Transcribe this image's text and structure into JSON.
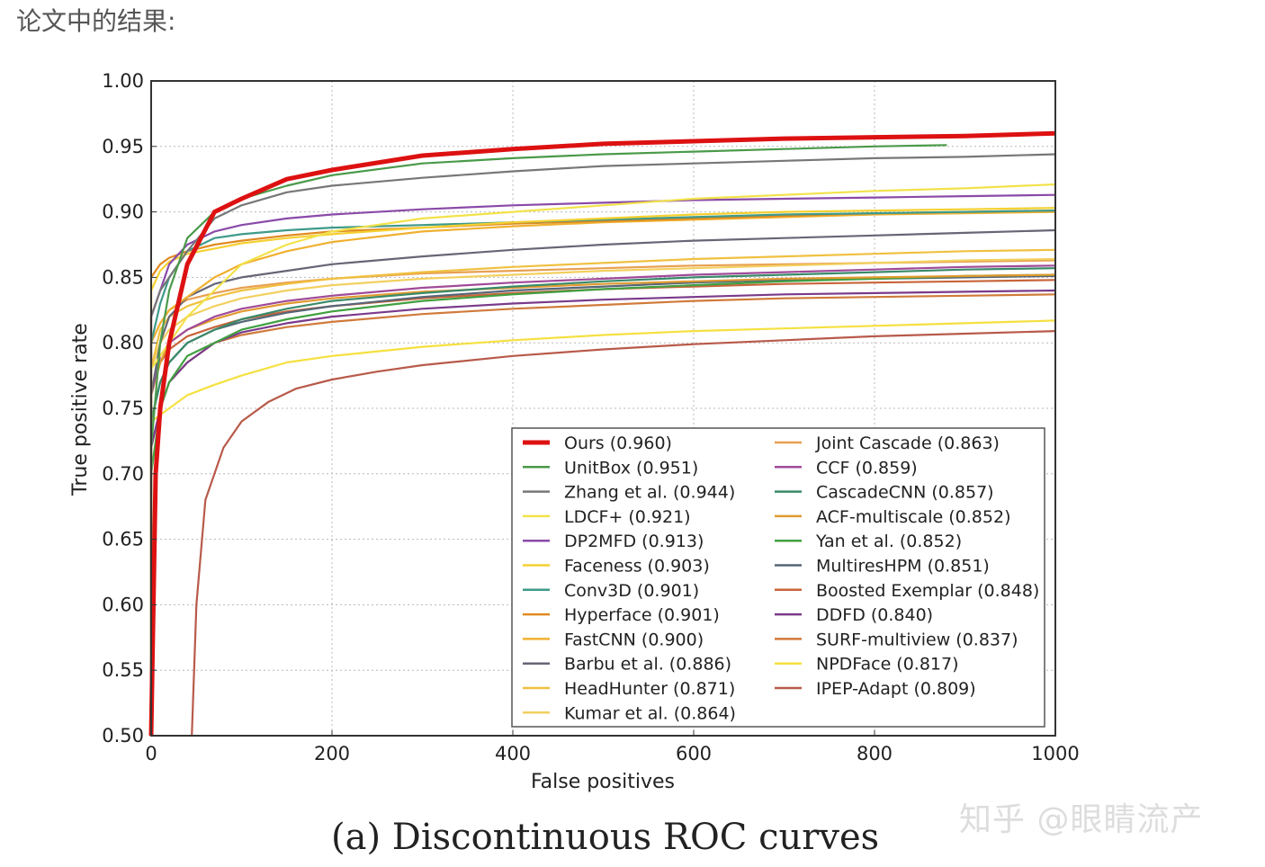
{
  "heading": "论文中的结果:",
  "watermark": "知乎 @眼睛流产",
  "caption": "(a)  Discontinuous ROC curves",
  "chart_data": {
    "type": "line",
    "title": "",
    "xlabel": "False positives",
    "ylabel": "True positive rate",
    "xlim": [
      0,
      1000
    ],
    "ylim": [
      0.5,
      1.0
    ],
    "xticks": [
      "0",
      "200",
      "400",
      "600",
      "800",
      "1000"
    ],
    "yticks": [
      "0.50",
      "0.55",
      "0.60",
      "0.65",
      "0.70",
      "0.75",
      "0.80",
      "0.85",
      "0.90",
      "0.95",
      "1.00"
    ],
    "grid": true,
    "legend_position": "lower-right",
    "series": [
      {
        "name": "Ours (0.960)",
        "color": "#dd1111",
        "start": 0.73,
        "x": [
          0,
          5,
          10,
          20,
          40,
          70,
          100,
          150,
          200,
          300,
          400,
          500,
          600,
          700,
          800,
          900,
          1000
        ],
        "y": [
          0.5,
          0.7,
          0.75,
          0.8,
          0.86,
          0.9,
          0.91,
          0.925,
          0.932,
          0.943,
          0.948,
          0.952,
          0.954,
          0.956,
          0.957,
          0.958,
          0.96
        ]
      },
      {
        "name": "UnitBox (0.951)",
        "color": "#4a9a4a",
        "start": 0.0,
        "x": [
          0,
          10,
          20,
          40,
          70,
          100,
          150,
          200,
          300,
          400,
          500,
          600,
          700,
          800,
          880
        ],
        "y": [
          0.72,
          0.8,
          0.84,
          0.88,
          0.9,
          0.91,
          0.92,
          0.928,
          0.937,
          0.941,
          0.944,
          0.946,
          0.948,
          0.95,
          0.951
        ]
      },
      {
        "name": "Zhang et al. (0.944)",
        "color": "#777777",
        "start": 0.72,
        "x": [
          0,
          10,
          20,
          40,
          70,
          100,
          150,
          200,
          300,
          400,
          500,
          600,
          700,
          800,
          900,
          1000
        ],
        "y": [
          0.82,
          0.84,
          0.85,
          0.87,
          0.895,
          0.905,
          0.915,
          0.92,
          0.926,
          0.931,
          0.935,
          0.937,
          0.939,
          0.941,
          0.942,
          0.944
        ]
      },
      {
        "name": "LDCF+ (0.921)",
        "color": "#f2e24a",
        "start": 0.76,
        "x": [
          0,
          10,
          20,
          40,
          70,
          100,
          150,
          200,
          300,
          400,
          500,
          600,
          700,
          800,
          900,
          1000
        ],
        "y": [
          0.78,
          0.79,
          0.8,
          0.82,
          0.84,
          0.86,
          0.875,
          0.885,
          0.895,
          0.9,
          0.905,
          0.91,
          0.913,
          0.916,
          0.918,
          0.921
        ]
      },
      {
        "name": "DP2MFD (0.913)",
        "color": "#8a4aa8",
        "start": 0.8,
        "x": [
          0,
          10,
          20,
          40,
          70,
          100,
          150,
          200,
          300,
          400,
          500,
          600,
          700,
          800,
          900,
          1000
        ],
        "y": [
          0.82,
          0.84,
          0.86,
          0.875,
          0.885,
          0.89,
          0.895,
          0.898,
          0.902,
          0.905,
          0.907,
          0.909,
          0.91,
          0.911,
          0.912,
          0.913
        ]
      },
      {
        "name": "Faceness (0.903)",
        "color": "#f5d030",
        "start": 0.84,
        "x": [
          0,
          10,
          20,
          40,
          70,
          100,
          150,
          200,
          300,
          400,
          500,
          600,
          700,
          800,
          900,
          1000
        ],
        "y": [
          0.84,
          0.855,
          0.862,
          0.868,
          0.872,
          0.876,
          0.88,
          0.883,
          0.888,
          0.892,
          0.895,
          0.898,
          0.9,
          0.901,
          0.902,
          0.903
        ]
      },
      {
        "name": "Conv3D (0.901)",
        "color": "#3f9a8a",
        "start": 0.8,
        "x": [
          0,
          10,
          20,
          40,
          70,
          100,
          150,
          200,
          300,
          400,
          500,
          600,
          700,
          800,
          900,
          1000
        ],
        "y": [
          0.8,
          0.83,
          0.85,
          0.87,
          0.88,
          0.883,
          0.886,
          0.888,
          0.89,
          0.892,
          0.894,
          0.896,
          0.898,
          0.899,
          0.9,
          0.901
        ]
      },
      {
        "name": "Hyperface (0.901)",
        "color": "#e08a20",
        "start": 0.85,
        "x": [
          0,
          10,
          20,
          40,
          70,
          100,
          150,
          200,
          300,
          400,
          500,
          600,
          700,
          800,
          900,
          1000
        ],
        "y": [
          0.85,
          0.86,
          0.865,
          0.87,
          0.875,
          0.878,
          0.882,
          0.885,
          0.888,
          0.891,
          0.893,
          0.895,
          0.897,
          0.899,
          0.9,
          0.901
        ]
      },
      {
        "name": "FastCNN (0.900)",
        "color": "#f0b030",
        "start": 0.8,
        "x": [
          0,
          10,
          20,
          40,
          70,
          100,
          150,
          200,
          300,
          400,
          500,
          600,
          700,
          800,
          900,
          1000
        ],
        "y": [
          0.8,
          0.815,
          0.825,
          0.835,
          0.85,
          0.86,
          0.87,
          0.877,
          0.885,
          0.889,
          0.892,
          0.894,
          0.896,
          0.898,
          0.899,
          0.9
        ]
      },
      {
        "name": "Barbu et al. (0.886)",
        "color": "#666677",
        "start": 0.76,
        "x": [
          0,
          10,
          20,
          40,
          70,
          100,
          150,
          200,
          300,
          400,
          500,
          600,
          700,
          800,
          900,
          1000
        ],
        "y": [
          0.76,
          0.8,
          0.82,
          0.835,
          0.845,
          0.85,
          0.855,
          0.86,
          0.866,
          0.871,
          0.875,
          0.878,
          0.88,
          0.882,
          0.884,
          0.886
        ]
      },
      {
        "name": "HeadHunter (0.871)",
        "color": "#f0c040",
        "start": 0.78,
        "x": [
          0,
          10,
          20,
          40,
          70,
          100,
          150,
          200,
          300,
          400,
          500,
          600,
          700,
          800,
          900,
          1000
        ],
        "y": [
          0.78,
          0.81,
          0.82,
          0.828,
          0.835,
          0.84,
          0.845,
          0.849,
          0.854,
          0.858,
          0.861,
          0.864,
          0.866,
          0.868,
          0.87,
          0.871
        ]
      },
      {
        "name": "Kumar et al. (0.864)",
        "color": "#f2d060",
        "start": 0.78,
        "x": [
          0,
          10,
          20,
          40,
          70,
          100,
          150,
          200,
          300,
          400,
          500,
          600,
          700,
          800,
          900,
          1000
        ],
        "y": [
          0.78,
          0.8,
          0.81,
          0.82,
          0.828,
          0.834,
          0.84,
          0.844,
          0.849,
          0.852,
          0.855,
          0.857,
          0.859,
          0.861,
          0.863,
          0.864
        ]
      },
      {
        "name": "Joint Cascade (0.863)",
        "color": "#e8a050",
        "start": 0.8,
        "x": [
          0,
          10,
          20,
          40,
          70,
          100,
          150,
          200,
          300,
          400,
          500,
          600,
          700,
          800,
          900,
          1000
        ],
        "y": [
          0.8,
          0.815,
          0.825,
          0.833,
          0.838,
          0.842,
          0.846,
          0.849,
          0.853,
          0.855,
          0.857,
          0.859,
          0.86,
          0.861,
          0.862,
          0.863
        ]
      },
      {
        "name": "CCF (0.859)",
        "color": "#a04a98",
        "start": 0.76,
        "x": [
          0,
          10,
          20,
          40,
          70,
          100,
          150,
          200,
          300,
          400,
          500,
          600,
          700,
          800,
          900,
          1000
        ],
        "y": [
          0.76,
          0.79,
          0.8,
          0.81,
          0.82,
          0.826,
          0.832,
          0.836,
          0.842,
          0.846,
          0.849,
          0.852,
          0.854,
          0.856,
          0.858,
          0.859
        ]
      },
      {
        "name": "CascadeCNN (0.857)",
        "color": "#3a8a6a",
        "start": 0.74,
        "x": [
          0,
          10,
          20,
          40,
          70,
          100,
          150,
          200,
          300,
          400,
          500,
          600,
          700,
          800,
          900,
          1000
        ],
        "y": [
          0.74,
          0.77,
          0.785,
          0.8,
          0.81,
          0.818,
          0.826,
          0.832,
          0.838,
          0.843,
          0.847,
          0.85,
          0.852,
          0.854,
          0.856,
          0.857
        ]
      },
      {
        "name": "ACF-multiscale (0.852)",
        "color": "#e09a30",
        "start": 0.76,
        "x": [
          0,
          10,
          20,
          40,
          70,
          100,
          150,
          200,
          300,
          400,
          500,
          600,
          700,
          800,
          900,
          1000
        ],
        "y": [
          0.76,
          0.785,
          0.8,
          0.81,
          0.818,
          0.824,
          0.83,
          0.834,
          0.839,
          0.842,
          0.845,
          0.847,
          0.849,
          0.85,
          0.851,
          0.852
        ]
      },
      {
        "name": "Yan et al. (0.852)",
        "color": "#40a040",
        "start": 0.7,
        "x": [
          0,
          10,
          20,
          40,
          70,
          100,
          150,
          200,
          300,
          400,
          500,
          600,
          700,
          800,
          900,
          1000
        ],
        "y": [
          0.7,
          0.75,
          0.77,
          0.79,
          0.8,
          0.81,
          0.818,
          0.824,
          0.832,
          0.837,
          0.841,
          0.844,
          0.847,
          0.849,
          0.851,
          0.852
        ]
      },
      {
        "name": "MultiresHPM (0.851)",
        "color": "#556677",
        "start": 0.74,
        "x": [
          0,
          10,
          20,
          40,
          70,
          100,
          150,
          200,
          300,
          400,
          500,
          600,
          700,
          800,
          900,
          1000
        ],
        "y": [
          0.74,
          0.77,
          0.785,
          0.8,
          0.81,
          0.816,
          0.823,
          0.828,
          0.835,
          0.84,
          0.843,
          0.846,
          0.848,
          0.849,
          0.85,
          0.851
        ]
      },
      {
        "name": "Boosted Exemplar (0.848)",
        "color": "#c8643a",
        "start": 0.76,
        "x": [
          0,
          10,
          20,
          40,
          70,
          100,
          150,
          200,
          300,
          400,
          500,
          600,
          700,
          800,
          900,
          1000
        ],
        "y": [
          0.76,
          0.785,
          0.795,
          0.805,
          0.812,
          0.818,
          0.824,
          0.828,
          0.834,
          0.838,
          0.841,
          0.843,
          0.845,
          0.846,
          0.847,
          0.848
        ]
      },
      {
        "name": "DDFD (0.840)",
        "color": "#7a3a8a",
        "start": 0.72,
        "x": [
          0,
          10,
          20,
          40,
          70,
          100,
          150,
          200,
          300,
          400,
          500,
          600,
          700,
          800,
          900,
          1000
        ],
        "y": [
          0.72,
          0.75,
          0.77,
          0.785,
          0.8,
          0.808,
          0.815,
          0.82,
          0.826,
          0.83,
          0.833,
          0.835,
          0.837,
          0.838,
          0.839,
          0.84
        ]
      },
      {
        "name": "SURF-multiview (0.837)",
        "color": "#d07a3a",
        "start": 0.72,
        "x": [
          0,
          10,
          20,
          40,
          70,
          100,
          150,
          200,
          300,
          400,
          500,
          600,
          700,
          800,
          900,
          1000
        ],
        "y": [
          0.72,
          0.75,
          0.77,
          0.785,
          0.8,
          0.806,
          0.812,
          0.816,
          0.822,
          0.826,
          0.829,
          0.832,
          0.834,
          0.835,
          0.836,
          0.837
        ]
      },
      {
        "name": "NPDFace (0.817)",
        "color": "#f5e040",
        "start": 0.74,
        "x": [
          0,
          10,
          20,
          40,
          70,
          100,
          150,
          200,
          300,
          400,
          500,
          600,
          700,
          800,
          900,
          1000
        ],
        "y": [
          0.74,
          0.745,
          0.75,
          0.76,
          0.768,
          0.775,
          0.785,
          0.79,
          0.797,
          0.802,
          0.806,
          0.809,
          0.811,
          0.813,
          0.815,
          0.817
        ]
      },
      {
        "name": "IPEP-Adapt (0.809)",
        "color": "#b85a4a",
        "start": 0.0,
        "x": [
          45,
          50,
          60,
          80,
          100,
          130,
          160,
          200,
          250,
          300,
          400,
          500,
          600,
          700,
          800,
          900,
          1000
        ],
        "y": [
          0.5,
          0.6,
          0.68,
          0.72,
          0.74,
          0.755,
          0.765,
          0.772,
          0.778,
          0.783,
          0.79,
          0.795,
          0.799,
          0.802,
          0.805,
          0.807,
          0.809
        ]
      }
    ]
  }
}
